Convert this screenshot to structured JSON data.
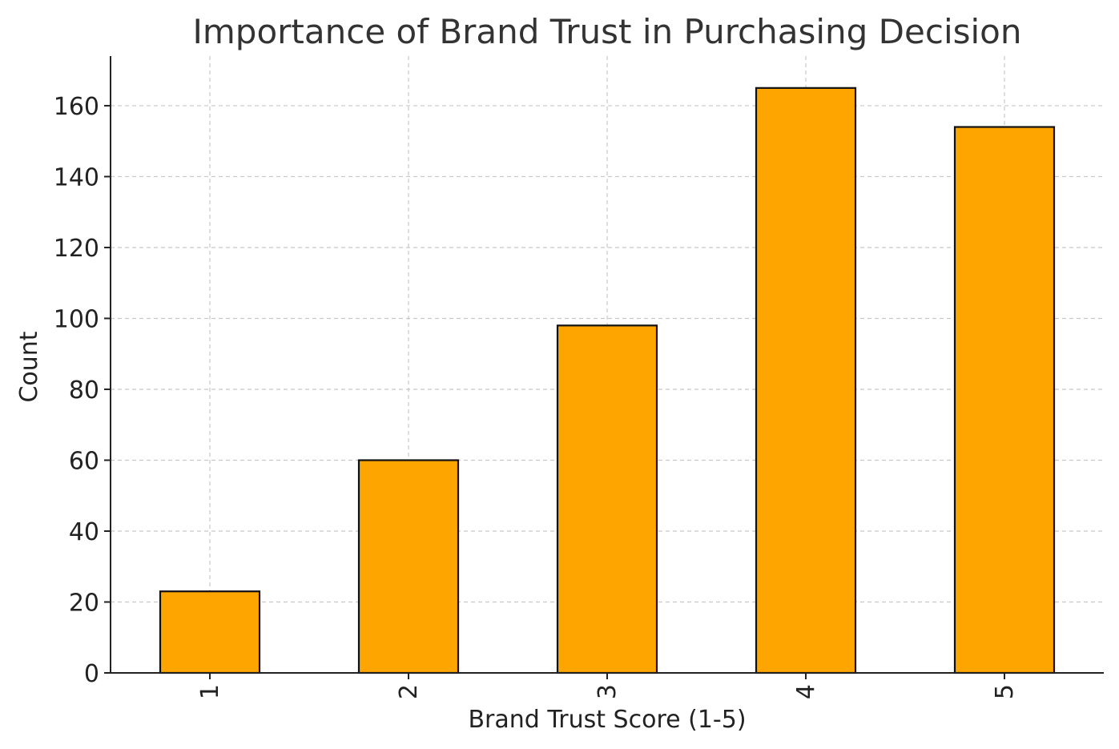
{
  "chart_data": {
    "type": "bar",
    "title": "Importance of Brand Trust in Purchasing Decision",
    "xlabel": "Brand Trust Score (1-5)",
    "ylabel": "Count",
    "categories": [
      "1",
      "2",
      "3",
      "4",
      "5"
    ],
    "values": [
      23,
      60,
      98,
      165,
      154
    ],
    "ylim": [
      0,
      174
    ],
    "yticks": [
      0,
      20,
      40,
      60,
      80,
      100,
      120,
      140,
      160
    ],
    "grid": true,
    "bar_color": "#FFA500",
    "bar_edge_color": "#111111",
    "x_tick_rotation": "vertical"
  }
}
